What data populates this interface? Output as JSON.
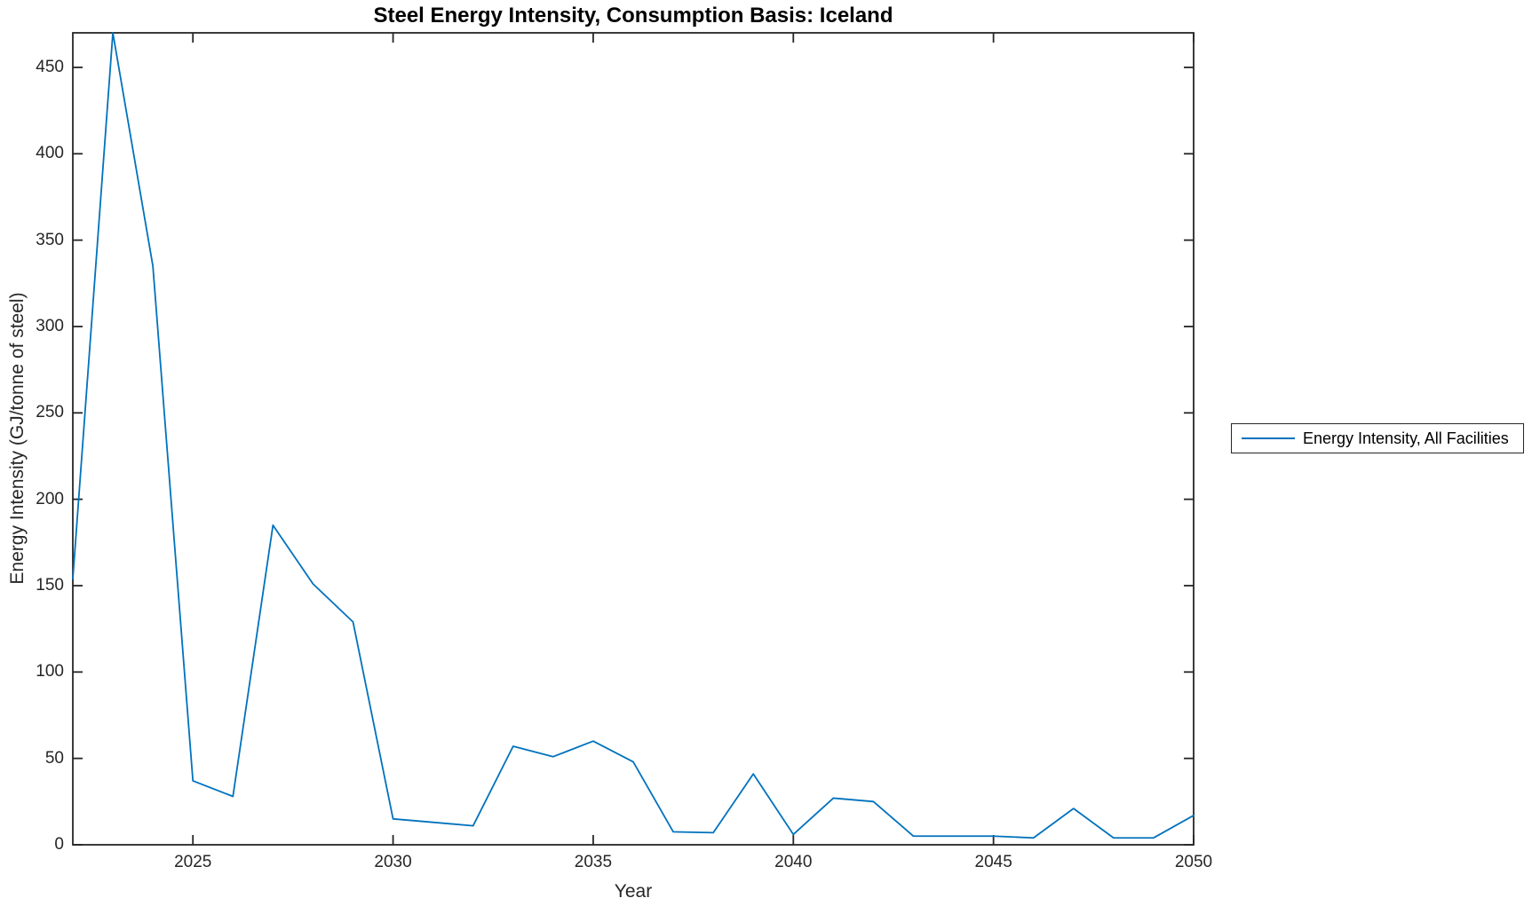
{
  "title": "Steel Energy Intensity, Consumption Basis: Iceland",
  "colors": {
    "line": "#0072BD",
    "axis": "#262626",
    "background": "#ffffff",
    "title_text": "#000000"
  },
  "legend": {
    "position": "right-outside",
    "items": [
      {
        "label": "Energy Intensity, All Facilities",
        "color": "#0072BD"
      }
    ]
  },
  "chart_data": {
    "type": "line",
    "title": "Steel Energy Intensity, Consumption Basis: Iceland",
    "xlabel": "Year",
    "ylabel": "Energy Intensity (GJ/tonne of steel)",
    "grid": false,
    "box": true,
    "tick_direction": "in",
    "xlim": [
      2022,
      2050
    ],
    "ylim": [
      0,
      470
    ],
    "xticks": [
      2025,
      2030,
      2035,
      2040,
      2045,
      2050
    ],
    "yticks": [
      0,
      50,
      100,
      150,
      200,
      250,
      300,
      350,
      400,
      450
    ],
    "x": [
      2022,
      2023,
      2024,
      2025,
      2026,
      2027,
      2028,
      2029,
      2030,
      2031,
      2032,
      2033,
      2034,
      2035,
      2036,
      2037,
      2038,
      2039,
      2040,
      2041,
      2042,
      2043,
      2044,
      2045,
      2046,
      2047,
      2048,
      2049,
      2050
    ],
    "series": [
      {
        "name": "Energy Intensity, All Facilities",
        "color": "#0072BD",
        "values": [
          154,
          470,
          335,
          37,
          28,
          185,
          151,
          129,
          15,
          13,
          11,
          57,
          51,
          60,
          48,
          7.5,
          7,
          41,
          6,
          27,
          25,
          5,
          5,
          5,
          4,
          21,
          4,
          4,
          17
        ]
      }
    ],
    "legend_position": "right-outside"
  }
}
